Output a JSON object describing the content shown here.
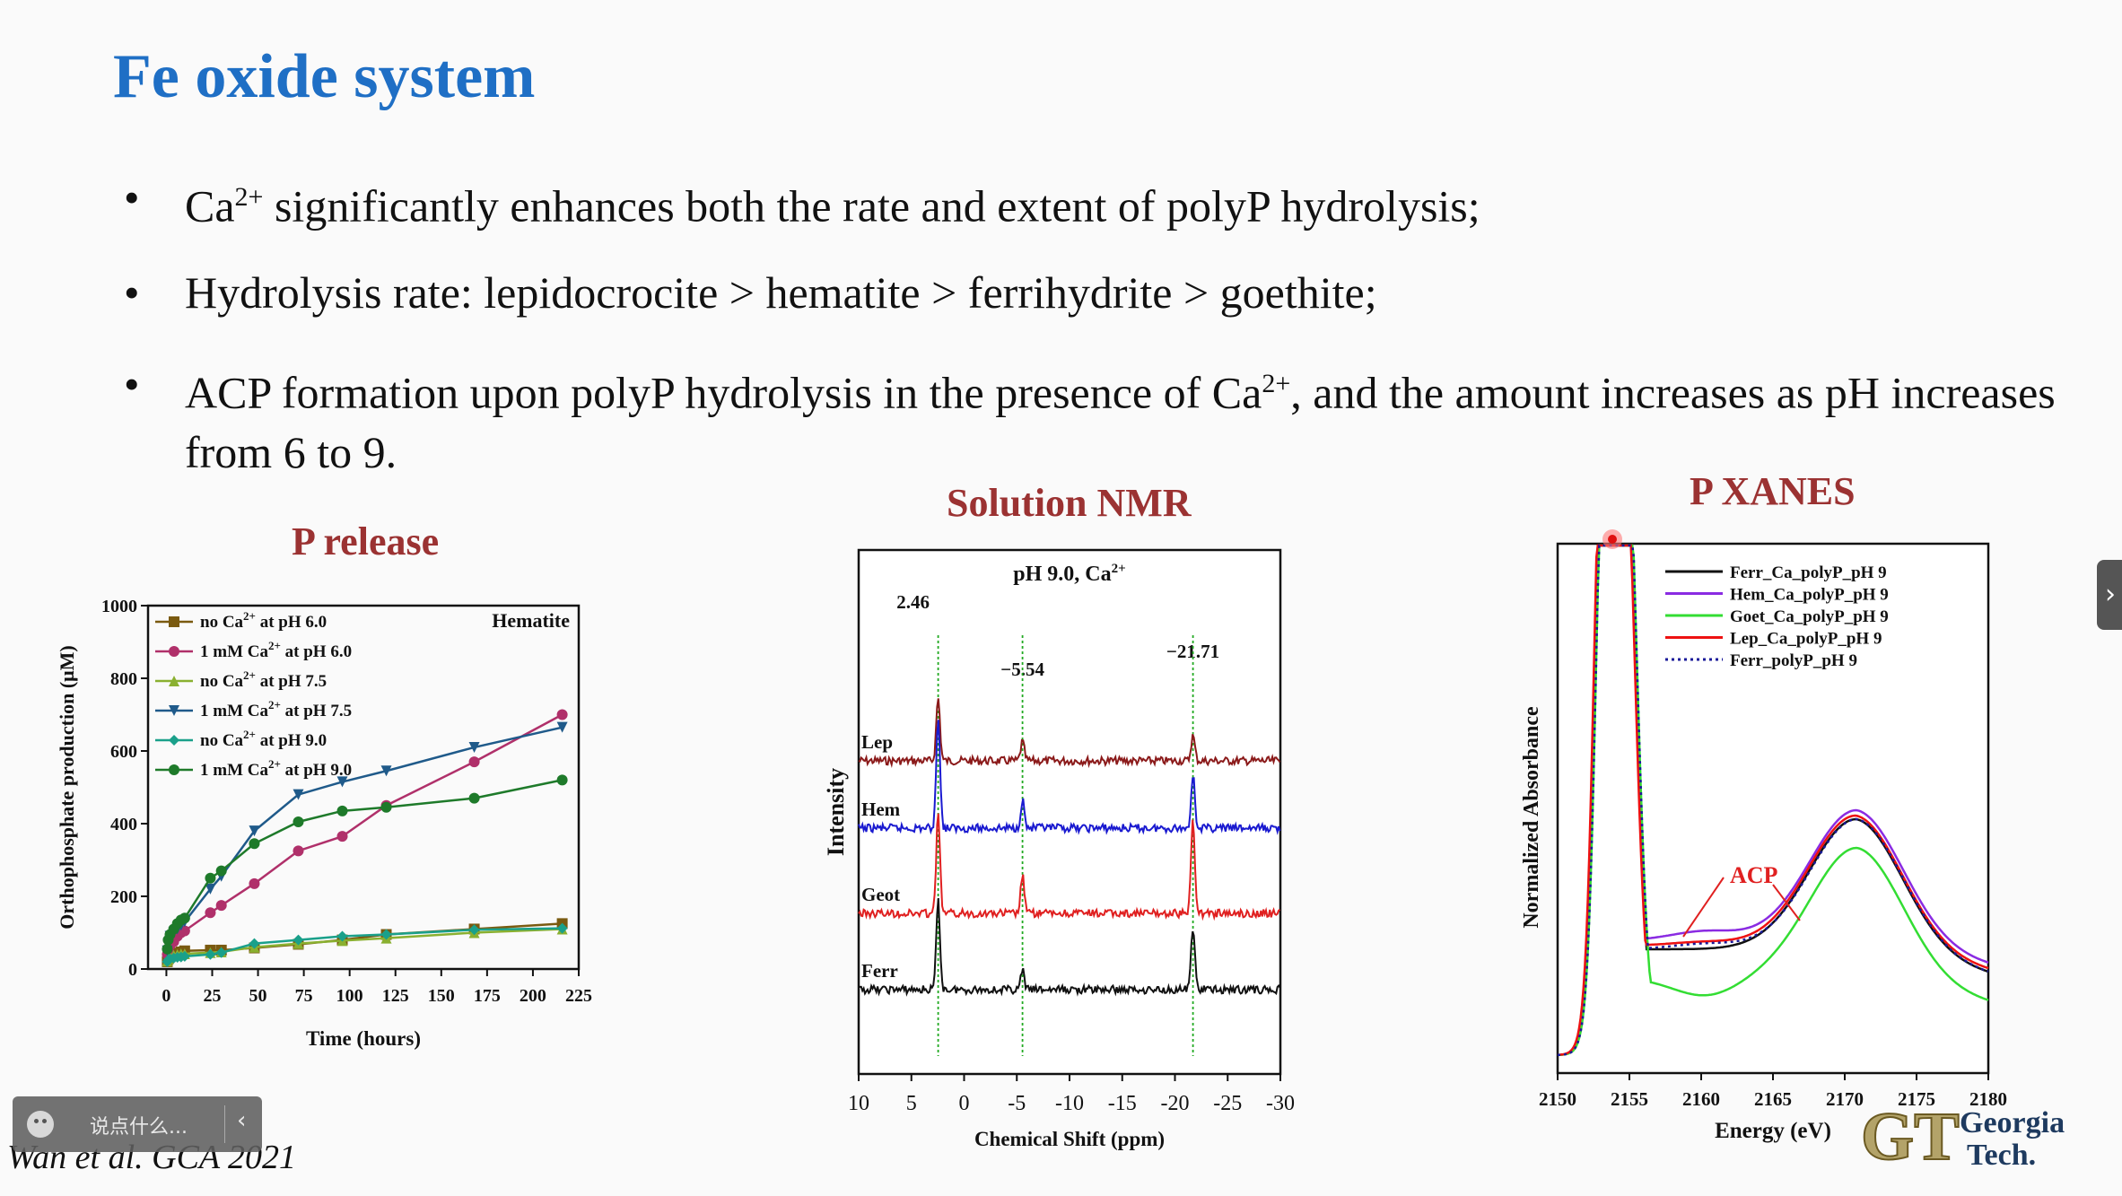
{
  "slide": {
    "title": "Fe oxide system",
    "bullets": [
      {
        "pre": "Ca",
        "sup": "2+",
        "post": " significantly enhances both the rate and extent of polyP hydrolysis;"
      },
      {
        "pre": "Hydrolysis rate: lepidocrocite > hematite > ferrihydrite > goethite;",
        "sup": "",
        "post": ""
      },
      {
        "pre": "ACP formation upon polyP hydrolysis in the presence of Ca",
        "sup": "2+",
        "post": ", and the amount increases as pH increases from 6 to 9."
      }
    ],
    "citation": "Wan et al. GCA 2021"
  },
  "ui": {
    "chat_placeholder": "说点什么...",
    "chat_collapse": "‹",
    "side_tab": "›",
    "logo_text_1": "Georgia",
    "logo_text_2": "Tech."
  },
  "chart_data": [
    {
      "type": "line",
      "panel_title": "P release",
      "title": "Hematite",
      "xlabel": "Time (hours)",
      "ylabel": "Orthophosphate production (μM)",
      "xlim": [
        -10,
        225
      ],
      "ylim": [
        0,
        1000
      ],
      "xticks": [
        0,
        25,
        50,
        75,
        100,
        125,
        150,
        175,
        200,
        225
      ],
      "yticks": [
        0,
        200,
        400,
        600,
        800,
        1000
      ],
      "x": [
        0.5,
        1,
        2,
        4,
        6,
        8,
        10,
        24,
        30,
        48,
        72,
        96,
        120,
        168,
        216
      ],
      "legend": "top-left",
      "series": [
        {
          "name": "no Ca",
          "name_sup": "2+",
          "name_post": " at pH 6.0",
          "color": "#7a5a10",
          "marker": "square",
          "values": [
            20,
            28,
            34,
            40,
            44,
            47,
            50,
            52,
            52,
            58,
            68,
            80,
            95,
            110,
            125
          ]
        },
        {
          "name": "1 mM Ca",
          "name_sup": "2+",
          "name_post": " at pH 6.0",
          "color": "#b0306a",
          "marker": "circle",
          "values": [
            40,
            55,
            65,
            75,
            90,
            100,
            105,
            155,
            175,
            235,
            325,
            365,
            450,
            570,
            700
          ]
        },
        {
          "name": "no Ca",
          "name_sup": "2+",
          "name_post": " at pH 7.5",
          "color": "#8ab030",
          "marker": "triangle-up",
          "values": [
            22,
            28,
            34,
            38,
            40,
            42,
            42,
            45,
            47,
            60,
            70,
            78,
            85,
            100,
            110
          ]
        },
        {
          "name": "1 mM Ca",
          "name_sup": "2+",
          "name_post": " at pH 7.5",
          "color": "#1f5a8a",
          "marker": "triangle-down",
          "values": [
            50,
            70,
            90,
            100,
            110,
            120,
            130,
            220,
            255,
            380,
            480,
            515,
            545,
            610,
            665
          ]
        },
        {
          "name": "no Ca",
          "name_sup": "2+",
          "name_post": " at pH 9.0",
          "color": "#1aa08a",
          "marker": "diamond",
          "values": [
            20,
            25,
            28,
            30,
            32,
            33,
            35,
            40,
            45,
            70,
            80,
            90,
            95,
            108,
            112
          ]
        },
        {
          "name": "1 mM Ca",
          "name_sup": "2+",
          "name_post": " at pH 9.0",
          "color": "#1e7a2a",
          "marker": "circle",
          "values": [
            55,
            80,
            95,
            110,
            125,
            135,
            140,
            250,
            270,
            345,
            405,
            435,
            445,
            470,
            520
          ]
        }
      ]
    },
    {
      "type": "line",
      "panel_title": "Solution NMR",
      "title": "pH 9.0, Ca",
      "title_sup": "2+",
      "xlabel": "Chemical Shift (ppm)",
      "ylabel": "Intensity",
      "xlim": [
        10,
        -30
      ],
      "xticks": [
        10,
        5,
        0,
        -5,
        -10,
        -15,
        -20,
        -25,
        -30
      ],
      "peaks": [
        2.46,
        -5.54,
        -21.71
      ],
      "peak_labels": [
        "2.46",
        "−5.54",
        "−21.71"
      ],
      "series": [
        {
          "name": "Lep",
          "color": "#8b1a1a",
          "peak_heights": [
            1.0,
            0.3,
            0.4
          ]
        },
        {
          "name": "Hem",
          "color": "#1a1ad0",
          "peak_heights": [
            1.8,
            0.45,
            0.85
          ]
        },
        {
          "name": "Geot",
          "color": "#e02020",
          "peak_heights": [
            1.6,
            0.6,
            1.5
          ]
        },
        {
          "name": "Ferr",
          "color": "#111111",
          "peak_heights": [
            1.4,
            0.3,
            1.0
          ]
        }
      ]
    },
    {
      "type": "line",
      "panel_title": "P XANES",
      "xlabel": "Energy (eV)",
      "ylabel": "Normalized Absorbance",
      "xlim": [
        2150,
        2180
      ],
      "xticks": [
        2150,
        2155,
        2160,
        2165,
        2170,
        2175,
        2180
      ],
      "annotation": "ACP",
      "legend": "top-right",
      "series": [
        {
          "name": "Ferr_Ca_polyP_pH 9",
          "color": "#111111",
          "dash": false
        },
        {
          "name": "Hem_Ca_polyP_pH 9",
          "color": "#8a2be2",
          "dash": false
        },
        {
          "name": "Goet_Ca_polyP_pH 9",
          "color": "#33dd33",
          "dash": false
        },
        {
          "name": "Lep_Ca_polyP_pH 9",
          "color": "#ee1111",
          "dash": false
        },
        {
          "name": "Ferr_polyP_pH 9",
          "color": "#1a1a9a",
          "dash": true
        }
      ]
    }
  ]
}
